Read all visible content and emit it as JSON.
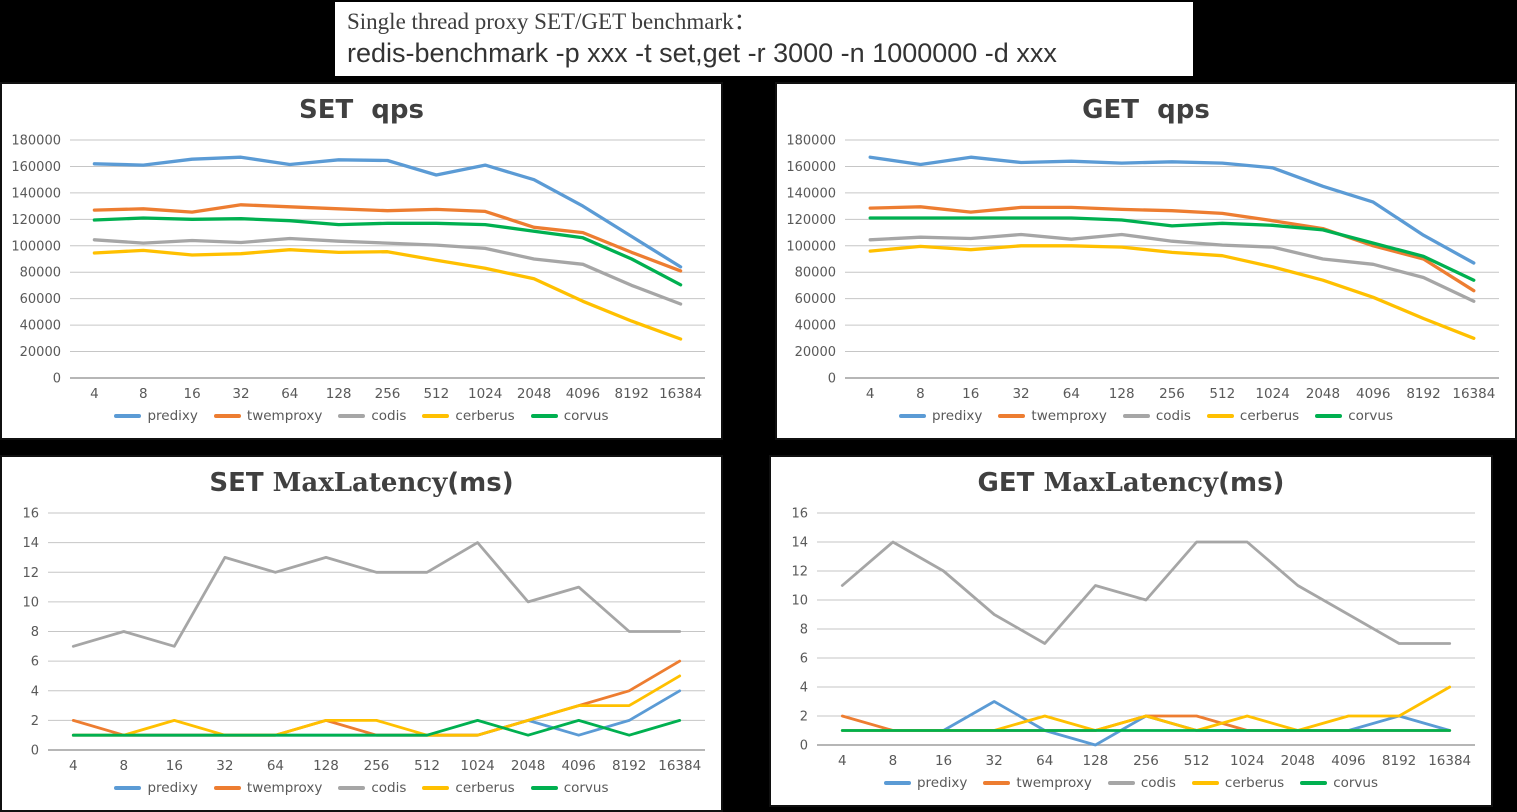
{
  "title_box": {
    "line1": "Single thread proxy SET/GET benchmark：",
    "line2": "redis-benchmark -p xxx -t set,get -r 3000 -n 1000000 -d xxx"
  },
  "colors": {
    "predixy": "#5B9BD5",
    "twemproxy": "#ED7D31",
    "codis": "#A6A6A6",
    "cerberus": "#FFC000",
    "corvus": "#00B050",
    "grid": "#C6C6C6",
    "axis": "#9E9E9E",
    "axis_text": "#595959",
    "title_text": "#404040"
  },
  "categories": [
    "4",
    "8",
    "16",
    "32",
    "64",
    "128",
    "256",
    "512",
    "1024",
    "2048",
    "4096",
    "8192",
    "16384"
  ],
  "chart_data": [
    {
      "id": "set-qps",
      "type": "line",
      "title_parts": [
        {
          "text": "SET  qps",
          "font": "sans"
        }
      ],
      "xlabel": "",
      "ylabel": "",
      "ylim": [
        0,
        180000
      ],
      "ytick": 20000,
      "grid": true,
      "legend_position": "bottom",
      "categories": [
        "4",
        "8",
        "16",
        "32",
        "64",
        "128",
        "256",
        "512",
        "1024",
        "2048",
        "4096",
        "8192",
        "16384"
      ],
      "series": [
        {
          "name": "predixy",
          "values": [
            162000,
            161000,
            165500,
            167000,
            161500,
            165000,
            164500,
            153500,
            161000,
            150000,
            130000,
            107000,
            84000
          ]
        },
        {
          "name": "twemproxy",
          "values": [
            127000,
            128000,
            125500,
            131000,
            129500,
            128000,
            126500,
            127500,
            126000,
            114000,
            110000,
            95000,
            81000
          ]
        },
        {
          "name": "codis",
          "values": [
            104500,
            102000,
            104000,
            102500,
            105500,
            103500,
            102000,
            100500,
            98000,
            90000,
            86000,
            70000,
            56000
          ]
        },
        {
          "name": "cerberus",
          "values": [
            94500,
            96500,
            93000,
            94000,
            97000,
            95000,
            95500,
            89000,
            83000,
            75000,
            58000,
            43000,
            29500
          ]
        },
        {
          "name": "corvus",
          "values": [
            119500,
            121000,
            120000,
            120500,
            119000,
            116000,
            117000,
            117000,
            116000,
            111000,
            106000,
            90000,
            70500
          ]
        }
      ]
    },
    {
      "id": "get-qps",
      "type": "line",
      "title_parts": [
        {
          "text": "GET  qps",
          "font": "sans"
        }
      ],
      "xlabel": "",
      "ylabel": "",
      "ylim": [
        0,
        180000
      ],
      "ytick": 20000,
      "grid": true,
      "legend_position": "bottom",
      "categories": [
        "4",
        "8",
        "16",
        "32",
        "64",
        "128",
        "256",
        "512",
        "1024",
        "2048",
        "4096",
        "8192",
        "16384"
      ],
      "series": [
        {
          "name": "predixy",
          "values": [
            167000,
            161500,
            167000,
            163000,
            164000,
            162500,
            163500,
            162500,
            159000,
            145000,
            133000,
            108000,
            87000
          ]
        },
        {
          "name": "twemproxy",
          "values": [
            128500,
            129500,
            125500,
            129000,
            129000,
            127500,
            126500,
            124500,
            119000,
            113000,
            100000,
            90000,
            66000
          ]
        },
        {
          "name": "codis",
          "values": [
            104500,
            106500,
            105500,
            108500,
            105000,
            108500,
            103500,
            100500,
            99000,
            90000,
            86000,
            76000,
            58000
          ]
        },
        {
          "name": "cerberus",
          "values": [
            96000,
            99500,
            97000,
            100000,
            100000,
            99000,
            95000,
            92500,
            84000,
            74000,
            61000,
            45000,
            30000
          ]
        },
        {
          "name": "corvus",
          "values": [
            121000,
            121000,
            121000,
            121000,
            121000,
            119500,
            115000,
            117000,
            115500,
            112000,
            102000,
            92000,
            74000
          ]
        }
      ]
    },
    {
      "id": "set-maxlatency",
      "type": "line",
      "title_parts": [
        {
          "text": "SET ",
          "font": "sans"
        },
        {
          "text": "MaxLatency",
          "font": "serif"
        },
        {
          "text": "(ms)",
          "font": "sans"
        }
      ],
      "xlabel": "",
      "ylabel": "",
      "ylim": [
        0,
        16
      ],
      "ytick": 2,
      "grid": true,
      "legend_position": "bottom",
      "categories": [
        "4",
        "8",
        "16",
        "32",
        "64",
        "128",
        "256",
        "512",
        "1024",
        "2048",
        "4096",
        "8192",
        "16384"
      ],
      "series": [
        {
          "name": "predixy",
          "values": [
            1,
            1,
            1,
            1,
            1,
            1,
            1,
            1,
            1,
            2,
            1,
            2,
            4
          ]
        },
        {
          "name": "twemproxy",
          "values": [
            2,
            1,
            1,
            1,
            1,
            2,
            1,
            1,
            1,
            2,
            3,
            4,
            6
          ]
        },
        {
          "name": "codis",
          "values": [
            7,
            8,
            7,
            13,
            12,
            13,
            12,
            12,
            14,
            10,
            11,
            8,
            8
          ]
        },
        {
          "name": "cerberus",
          "values": [
            1,
            1,
            2,
            1,
            1,
            2,
            2,
            1,
            1,
            2,
            3,
            3,
            5
          ]
        },
        {
          "name": "corvus",
          "values": [
            1,
            1,
            1,
            1,
            1,
            1,
            1,
            1,
            2,
            1,
            2,
            1,
            2
          ]
        }
      ]
    },
    {
      "id": "get-maxlatency",
      "type": "line",
      "title_parts": [
        {
          "text": "GET ",
          "font": "sans"
        },
        {
          "text": "MaxLatency",
          "font": "serif"
        },
        {
          "text": "(ms)",
          "font": "sans"
        }
      ],
      "xlabel": "",
      "ylabel": "",
      "ylim": [
        0,
        16
      ],
      "ytick": 2,
      "grid": true,
      "legend_position": "bottom",
      "categories": [
        "4",
        "8",
        "16",
        "32",
        "64",
        "128",
        "256",
        "512",
        "1024",
        "2048",
        "4096",
        "8192",
        "16384"
      ],
      "series": [
        {
          "name": "predixy",
          "values": [
            1,
            1,
            1,
            3,
            1,
            0,
            2,
            1,
            1,
            1,
            1,
            2,
            1
          ]
        },
        {
          "name": "twemproxy",
          "values": [
            2,
            1,
            1,
            1,
            1,
            1,
            2,
            2,
            1,
            1,
            1,
            1,
            1
          ]
        },
        {
          "name": "codis",
          "values": [
            11,
            14,
            12,
            9,
            7,
            11,
            10,
            14,
            14,
            11,
            9,
            7,
            7
          ]
        },
        {
          "name": "cerberus",
          "values": [
            1,
            1,
            1,
            1,
            2,
            1,
            2,
            1,
            2,
            1,
            2,
            2,
            4
          ]
        },
        {
          "name": "corvus",
          "values": [
            1,
            1,
            1,
            1,
            1,
            1,
            1,
            1,
            1,
            1,
            1,
            1,
            1
          ]
        }
      ]
    }
  ]
}
